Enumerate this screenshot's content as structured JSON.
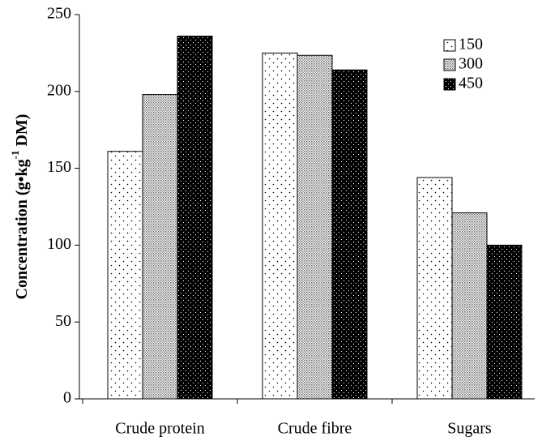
{
  "chart_data": {
    "type": "bar",
    "ylabel": [
      "Concentration (g•kg",
      "-1",
      " DM)"
    ],
    "categories": [
      "Crude protein",
      "Crude fibre",
      "Sugars"
    ],
    "series": [
      {
        "name": "150",
        "color": "#ffffff",
        "values": [
          161,
          225,
          144
        ]
      },
      {
        "name": "300",
        "color": "#b0b0b0",
        "values": [
          198,
          223.5,
          121
        ]
      },
      {
        "name": "450",
        "color": "#000000",
        "values": [
          236,
          214,
          100
        ]
      }
    ],
    "ylim": [
      0,
      250
    ],
    "yticks": [
      0,
      50,
      100,
      150,
      200,
      250
    ],
    "grid": false,
    "legend": "upper right"
  }
}
